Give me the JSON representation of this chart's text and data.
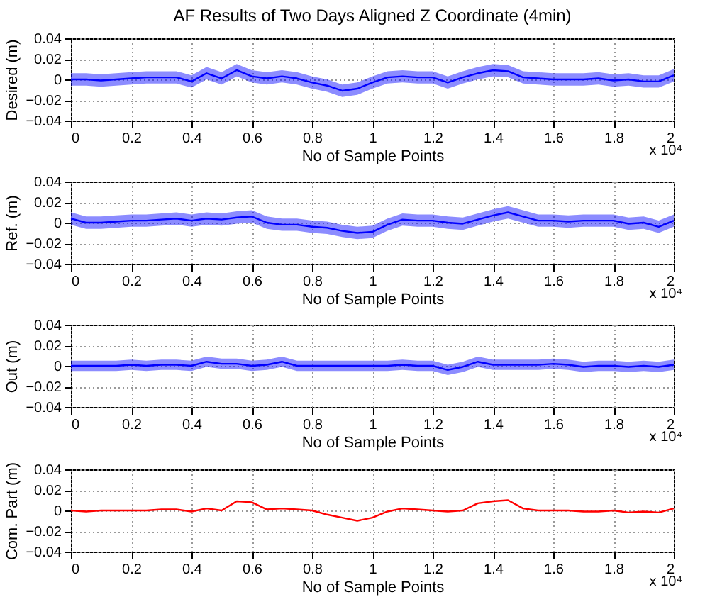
{
  "chart_data": [
    {
      "type": "line",
      "title": "AF Results of Two Days Aligned Z Coordinate (4min)",
      "xlabel": "No of Sample Points",
      "ylabel": "Desired (m)",
      "annotations": [
        "x 10⁴"
      ],
      "xlim": [
        0,
        2
      ],
      "xticks": [
        0,
        0.2,
        0.4,
        0.6,
        0.8,
        1,
        1.2,
        1.4,
        1.6,
        1.8,
        2
      ],
      "ylim": [
        -0.04,
        0.04
      ],
      "yticks": [
        -0.04,
        -0.02,
        0,
        0.02,
        0.04
      ],
      "grid": true,
      "line_style": "solid",
      "marker": "none",
      "x": [
        0,
        0.05,
        0.1,
        0.15,
        0.2,
        0.25,
        0.3,
        0.35,
        0.4,
        0.45,
        0.5,
        0.55,
        0.6,
        0.65,
        0.7,
        0.75,
        0.8,
        0.85,
        0.9,
        0.95,
        1,
        1.05,
        1.1,
        1.15,
        1.2,
        1.25,
        1.3,
        1.35,
        1.4,
        1.45,
        1.5,
        1.55,
        1.6,
        1.65,
        1.7,
        1.75,
        1.8,
        1.85,
        1.9,
        1.95,
        2
      ],
      "series": [
        {
          "color": "#0000ff",
          "values": [
            0,
            0,
            -0.001,
            0,
            0.001,
            0.002,
            0.002,
            0.002,
            -0.002,
            0.006,
            0.001,
            0.009,
            0.003,
            0.001,
            0.003,
            0.001,
            -0.003,
            -0.006,
            -0.011,
            -0.009,
            -0.003,
            0.002,
            0.003,
            0.002,
            0.002,
            -0.003,
            0.002,
            0.006,
            0.009,
            0.008,
            0.002,
            0.001,
            0,
            0,
            0,
            0.001,
            -0.001,
            0,
            -0.002,
            -0.002,
            0.004
          ],
          "lower": [
            -0.006,
            -0.006,
            -0.007,
            -0.006,
            -0.005,
            -0.004,
            -0.004,
            -0.004,
            -0.008,
            0,
            -0.005,
            0.003,
            -0.003,
            -0.005,
            -0.003,
            -0.005,
            -0.009,
            -0.012,
            -0.017,
            -0.015,
            -0.009,
            -0.004,
            -0.003,
            -0.004,
            -0.004,
            -0.009,
            -0.004,
            0,
            0.003,
            0.002,
            -0.004,
            -0.005,
            -0.006,
            -0.006,
            -0.006,
            -0.005,
            -0.007,
            -0.006,
            -0.008,
            -0.008,
            -0.002
          ],
          "upper": [
            0.006,
            0.006,
            0.005,
            0.006,
            0.007,
            0.008,
            0.008,
            0.008,
            0.004,
            0.012,
            0.007,
            0.015,
            0.009,
            0.007,
            0.009,
            0.007,
            0.003,
            0,
            -0.005,
            -0.003,
            0.003,
            0.008,
            0.009,
            0.008,
            0.008,
            0.003,
            0.008,
            0.012,
            0.015,
            0.014,
            0.008,
            0.007,
            0.006,
            0.006,
            0.006,
            0.007,
            0.005,
            0.006,
            0.004,
            0.004,
            0.01
          ]
        }
      ]
    },
    {
      "type": "line",
      "xlabel": "No of Sample Points",
      "ylabel": "Ref. (m)",
      "annotations": [
        "x 10⁴"
      ],
      "xlim": [
        0,
        2
      ],
      "xticks": [
        0,
        0.2,
        0.4,
        0.6,
        0.8,
        1,
        1.2,
        1.4,
        1.6,
        1.8,
        2
      ],
      "ylim": [
        -0.04,
        0.04
      ],
      "yticks": [
        -0.04,
        -0.02,
        0,
        0.02,
        0.04
      ],
      "grid": true,
      "line_style": "solid",
      "marker": "none",
      "x": [
        0,
        0.05,
        0.1,
        0.15,
        0.2,
        0.25,
        0.3,
        0.35,
        0.4,
        0.45,
        0.5,
        0.55,
        0.6,
        0.65,
        0.7,
        0.75,
        0.8,
        0.85,
        0.9,
        0.95,
        1,
        1.05,
        1.1,
        1.15,
        1.2,
        1.25,
        1.3,
        1.35,
        1.4,
        1.45,
        1.5,
        1.55,
        1.6,
        1.65,
        1.7,
        1.75,
        1.8,
        1.85,
        1.9,
        1.95,
        2
      ],
      "series": [
        {
          "color": "#0000ff",
          "values": [
            0.004,
            0,
            0,
            0.001,
            0.002,
            0.002,
            0.003,
            0.004,
            0.002,
            0.004,
            0.003,
            0.005,
            0.006,
            0,
            -0.002,
            -0.002,
            -0.004,
            -0.005,
            -0.008,
            -0.01,
            -0.009,
            -0.002,
            0.003,
            0.002,
            0.002,
            0,
            -0.001,
            0.003,
            0.007,
            0.01,
            0.006,
            0.002,
            0.002,
            0.001,
            0.002,
            0.002,
            0.002,
            -0.001,
            0,
            -0.004,
            0.002
          ],
          "lower": [
            -0.002,
            -0.006,
            -0.006,
            -0.005,
            -0.004,
            -0.004,
            -0.003,
            -0.002,
            -0.004,
            -0.002,
            -0.003,
            -0.001,
            0,
            -0.006,
            -0.008,
            -0.008,
            -0.01,
            -0.011,
            -0.014,
            -0.016,
            -0.015,
            -0.008,
            -0.003,
            -0.004,
            -0.004,
            -0.006,
            -0.007,
            -0.003,
            0.001,
            0.004,
            0,
            -0.004,
            -0.004,
            -0.005,
            -0.004,
            -0.004,
            -0.004,
            -0.007,
            -0.006,
            -0.01,
            -0.004
          ],
          "upper": [
            0.01,
            0.006,
            0.006,
            0.007,
            0.008,
            0.008,
            0.009,
            0.01,
            0.008,
            0.01,
            0.009,
            0.011,
            0.012,
            0.006,
            0.004,
            0.004,
            0.002,
            0.001,
            -0.002,
            -0.004,
            -0.003,
            0.004,
            0.009,
            0.008,
            0.008,
            0.006,
            0.005,
            0.009,
            0.013,
            0.016,
            0.012,
            0.008,
            0.008,
            0.007,
            0.008,
            0.008,
            0.008,
            0.005,
            0.006,
            0.002,
            0.008
          ]
        }
      ]
    },
    {
      "type": "line",
      "xlabel": "No of Sample Points",
      "ylabel": "Out (m)",
      "annotations": [
        "x 10⁴"
      ],
      "xlim": [
        0,
        2
      ],
      "xticks": [
        0,
        0.2,
        0.4,
        0.6,
        0.8,
        1,
        1.2,
        1.4,
        1.6,
        1.8,
        2
      ],
      "ylim": [
        -0.04,
        0.04
      ],
      "yticks": [
        -0.04,
        -0.02,
        0,
        0.02,
        0.04
      ],
      "grid": true,
      "line_style": "solid",
      "marker": "none",
      "x": [
        0,
        0.05,
        0.1,
        0.15,
        0.2,
        0.25,
        0.3,
        0.35,
        0.4,
        0.45,
        0.5,
        0.55,
        0.6,
        0.65,
        0.7,
        0.75,
        0.8,
        0.85,
        0.9,
        0.95,
        1,
        1.05,
        1.1,
        1.15,
        1.2,
        1.25,
        1.3,
        1.35,
        1.4,
        1.45,
        1.5,
        1.55,
        1.6,
        1.65,
        1.7,
        1.75,
        1.8,
        1.85,
        1.9,
        1.95,
        2
      ],
      "series": [
        {
          "color": "#0000ff",
          "values": [
            0,
            0,
            0,
            0,
            0.001,
            0,
            0.001,
            0.001,
            0,
            0.004,
            0.002,
            0.002,
            0,
            0.001,
            0.004,
            0,
            0,
            0,
            0,
            0,
            0,
            0,
            0.001,
            0,
            0,
            -0.004,
            -0.001,
            0.004,
            0.001,
            0.001,
            0.001,
            0.001,
            0.002,
            0.001,
            -0.001,
            0,
            0,
            -0.001,
            0,
            -0.001,
            0.001
          ],
          "lower": [
            -0.005,
            -0.005,
            -0.005,
            -0.005,
            -0.004,
            -0.005,
            -0.004,
            -0.004,
            -0.005,
            -0.001,
            -0.003,
            -0.003,
            -0.005,
            -0.004,
            -0.001,
            -0.005,
            -0.005,
            -0.005,
            -0.005,
            -0.005,
            -0.005,
            -0.005,
            -0.004,
            -0.005,
            -0.005,
            -0.009,
            -0.006,
            -0.001,
            -0.004,
            -0.004,
            -0.004,
            -0.004,
            -0.003,
            -0.004,
            -0.006,
            -0.005,
            -0.005,
            -0.006,
            -0.005,
            -0.006,
            -0.004
          ],
          "upper": [
            0.005,
            0.005,
            0.005,
            0.005,
            0.006,
            0.005,
            0.006,
            0.006,
            0.005,
            0.009,
            0.007,
            0.007,
            0.005,
            0.006,
            0.009,
            0.005,
            0.005,
            0.005,
            0.005,
            0.005,
            0.005,
            0.005,
            0.006,
            0.005,
            0.005,
            0.001,
            0.004,
            0.009,
            0.006,
            0.006,
            0.006,
            0.006,
            0.007,
            0.006,
            0.004,
            0.005,
            0.005,
            0.004,
            0.005,
            0.004,
            0.006
          ]
        }
      ]
    },
    {
      "type": "line",
      "xlabel": "No of Sample Points",
      "ylabel": "Com. Part (m)",
      "annotations": [
        "x 10⁴"
      ],
      "xlim": [
        0,
        2
      ],
      "xticks": [
        0,
        0.2,
        0.4,
        0.6,
        0.8,
        1,
        1.2,
        1.4,
        1.6,
        1.8,
        2
      ],
      "ylim": [
        -0.04,
        0.04
      ],
      "yticks": [
        -0.04,
        -0.02,
        0,
        0.02,
        0.04
      ],
      "grid": true,
      "line_style": "solid",
      "marker": "none",
      "x": [
        0,
        0.05,
        0.1,
        0.15,
        0.2,
        0.25,
        0.3,
        0.35,
        0.4,
        0.45,
        0.5,
        0.55,
        0.6,
        0.65,
        0.7,
        0.75,
        0.8,
        0.85,
        0.9,
        0.95,
        1,
        1.05,
        1.1,
        1.15,
        1.2,
        1.25,
        1.3,
        1.35,
        1.4,
        1.45,
        1.5,
        1.55,
        1.6,
        1.65,
        1.7,
        1.75,
        1.8,
        1.85,
        1.9,
        1.95,
        2
      ],
      "series": [
        {
          "color": "#ff0000",
          "values": [
            0,
            -0.001,
            0,
            0,
            0,
            0,
            0.001,
            0.001,
            -0.001,
            0.002,
            0,
            0.009,
            0.008,
            0.001,
            0.002,
            0.001,
            0,
            -0.004,
            -0.007,
            -0.01,
            -0.007,
            -0.001,
            0.002,
            0.001,
            0,
            -0.001,
            0,
            0.007,
            0.009,
            0.01,
            0.002,
            0,
            0,
            0,
            -0.001,
            -0.001,
            0,
            -0.002,
            -0.001,
            -0.002,
            0.002
          ]
        }
      ]
    }
  ]
}
